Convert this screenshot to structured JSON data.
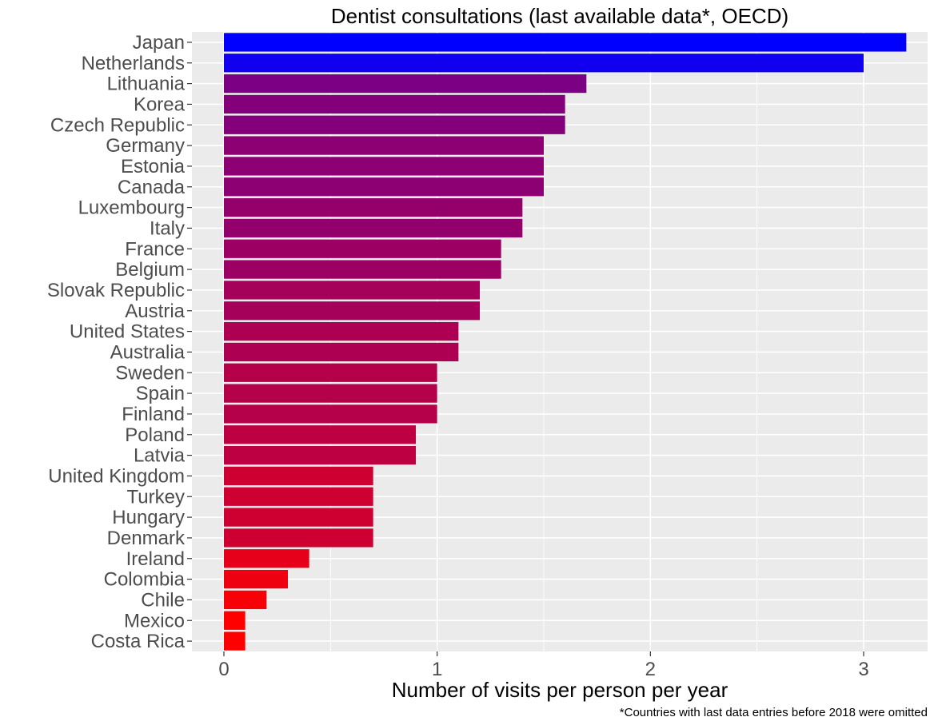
{
  "chart_data": {
    "type": "bar",
    "orientation": "horizontal",
    "title": "Dentist consultations (last available data*, OECD)",
    "xlabel": "Number of visits per person per year",
    "ylabel": "",
    "caption": "*Countries with last data entries before 2018 were omitted",
    "xlim": [
      -0.15,
      3.3
    ],
    "xticks": [
      0,
      1,
      2,
      3
    ],
    "grid": true,
    "legend": "none",
    "color_low": "#ff0000",
    "color_high": "#0000ff",
    "panel_background": "#ebebeb",
    "categories": [
      "Japan",
      "Netherlands",
      "Lithuania",
      "Korea",
      "Czech Republic",
      "Germany",
      "Estonia",
      "Canada",
      "Luxembourg",
      "Italy",
      "France",
      "Belgium",
      "Slovak Republic",
      "Austria",
      "United States",
      "Australia",
      "Sweden",
      "Spain",
      "Finland",
      "Poland",
      "Latvia",
      "United Kingdom",
      "Turkey",
      "Hungary",
      "Denmark",
      "Ireland",
      "Colombia",
      "Chile",
      "Mexico",
      "Costa Rica"
    ],
    "values": [
      3.2,
      3.0,
      1.7,
      1.6,
      1.6,
      1.5,
      1.5,
      1.5,
      1.4,
      1.4,
      1.3,
      1.3,
      1.2,
      1.2,
      1.1,
      1.1,
      1.0,
      1.0,
      1.0,
      0.9,
      0.9,
      0.7,
      0.7,
      0.7,
      0.7,
      0.4,
      0.3,
      0.2,
      0.1,
      0.1
    ]
  }
}
